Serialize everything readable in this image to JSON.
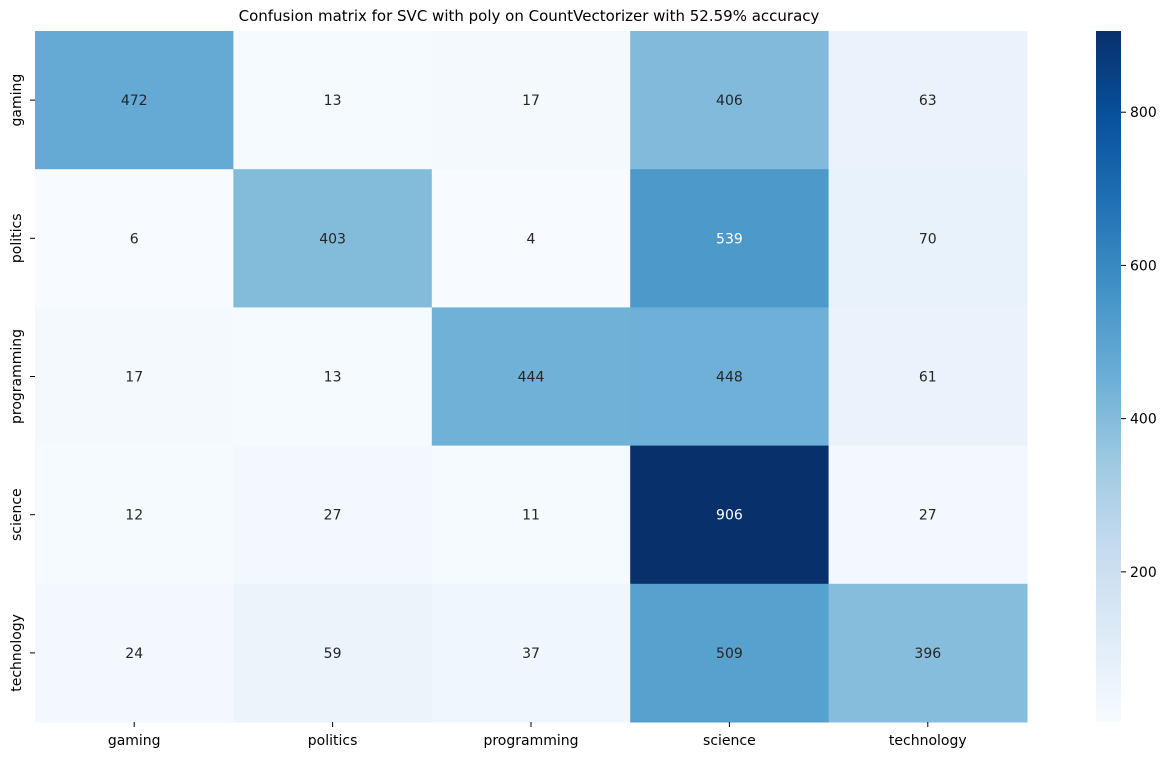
{
  "chart_data": {
    "type": "heatmap",
    "title": "Confusion matrix for SVC with poly on CountVectorizer with 52.59% accuracy",
    "xlabel": "",
    "ylabel": "",
    "x_categories": [
      "gaming",
      "politics",
      "programming",
      "science",
      "technology"
    ],
    "y_categories": [
      "gaming",
      "politics",
      "programming",
      "science",
      "technology"
    ],
    "values": [
      [
        472,
        13,
        17,
        406,
        63
      ],
      [
        6,
        403,
        4,
        539,
        70
      ],
      [
        17,
        13,
        444,
        448,
        61
      ],
      [
        12,
        27,
        11,
        906,
        27
      ],
      [
        24,
        59,
        37,
        509,
        396
      ]
    ],
    "colormap": "Blues",
    "colormap_stops": [
      "#f7fbff",
      "#deebf7",
      "#c6dbef",
      "#9ecae1",
      "#6baed6",
      "#4292c6",
      "#2171b5",
      "#08519c",
      "#08306b"
    ],
    "color_range": [
      4,
      906
    ],
    "colorbar_ticks": [
      200,
      400,
      600,
      800
    ],
    "grid": false,
    "annotation_color_dark": "#262626",
    "annotation_color_light": "#ffffff"
  }
}
